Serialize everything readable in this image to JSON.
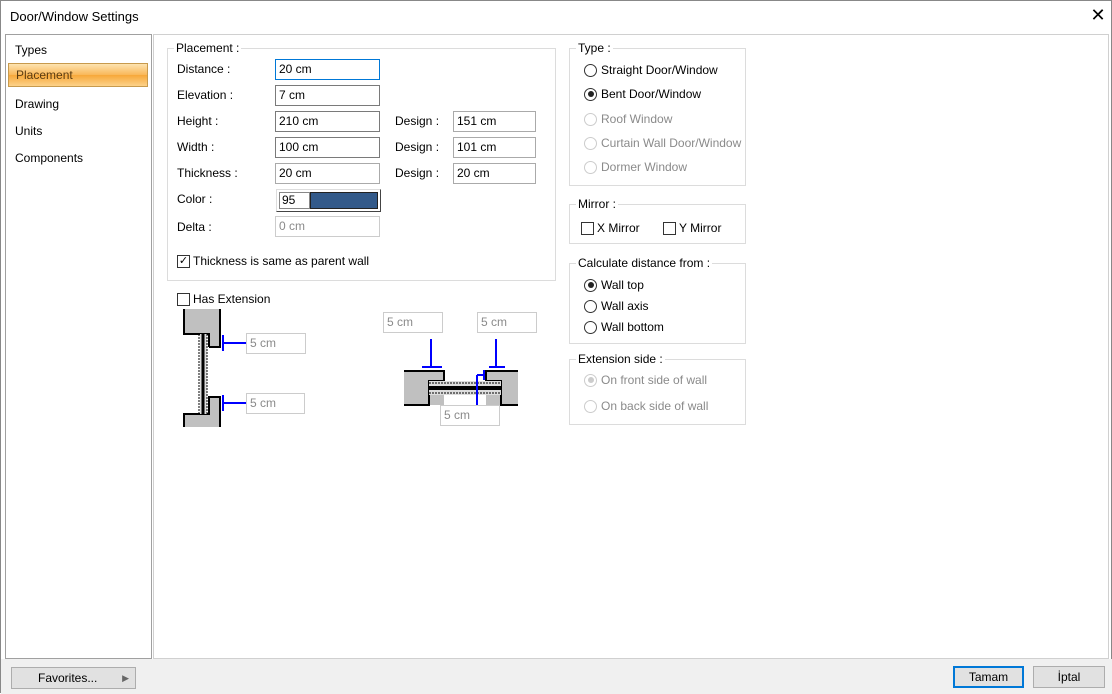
{
  "window": {
    "title": "Door/Window Settings",
    "close_icon": "close-icon"
  },
  "sidebar": {
    "items": [
      {
        "label": "Types"
      },
      {
        "label": "Placement",
        "active": true
      },
      {
        "label": "Drawing"
      },
      {
        "label": "Units"
      },
      {
        "label": "Components"
      }
    ]
  },
  "placement": {
    "group_label": "Placement :",
    "distance": {
      "label": "Distance :",
      "value": "20 cm"
    },
    "elevation": {
      "label": "Elevation :",
      "value": "7 cm"
    },
    "height": {
      "label": "Height :",
      "value": "210 cm",
      "design_label": "Design :",
      "design_value": "151 cm"
    },
    "width": {
      "label": "Width :",
      "value": "100 cm",
      "design_label": "Design :",
      "design_value": "101 cm"
    },
    "thickness": {
      "label": "Thickness :",
      "value": "20 cm",
      "design_label": "Design :",
      "design_value": "20 cm"
    },
    "color": {
      "label": "Color :",
      "value": "95",
      "swatch": "#335a8a"
    },
    "delta": {
      "label": "Delta :",
      "value": "0 cm"
    },
    "same_thickness": {
      "label": "Thickness is same as parent wall",
      "checked": true
    }
  },
  "extension": {
    "label": "Has Extension",
    "checked": false,
    "side_top": "5 cm",
    "side_bottom": "5 cm",
    "plan_left": "5 cm",
    "plan_right": "5 cm",
    "plan_bottom": "5 cm"
  },
  "type": {
    "group_label": "Type :",
    "options": [
      {
        "label": "Straight Door/Window",
        "selected": false,
        "enabled": true
      },
      {
        "label": "Bent Door/Window",
        "selected": true,
        "enabled": true
      },
      {
        "label": "Roof Window",
        "selected": false,
        "enabled": false
      },
      {
        "label": "Curtain Wall Door/Window",
        "selected": false,
        "enabled": false
      },
      {
        "label": "Dormer Window",
        "selected": false,
        "enabled": false
      }
    ]
  },
  "mirror": {
    "group_label": "Mirror :",
    "x": {
      "label": "X Mirror",
      "checked": false
    },
    "y": {
      "label": "Y Mirror",
      "checked": false
    }
  },
  "calc": {
    "group_label": "Calculate distance from :",
    "options": [
      {
        "label": "Wall top",
        "selected": true
      },
      {
        "label": "Wall axis",
        "selected": false
      },
      {
        "label": "Wall bottom",
        "selected": false
      }
    ]
  },
  "ext_side": {
    "group_label": "Extension side :",
    "options": [
      {
        "label": "On front side of wall",
        "selected": true,
        "enabled": false
      },
      {
        "label": "On back side of wall",
        "selected": false,
        "enabled": false
      }
    ]
  },
  "footer": {
    "favorites": "Favorites...",
    "ok": "Tamam",
    "cancel": "İptal"
  },
  "colors": {
    "accent": "#0078d7",
    "dimension": "#0000ff"
  }
}
